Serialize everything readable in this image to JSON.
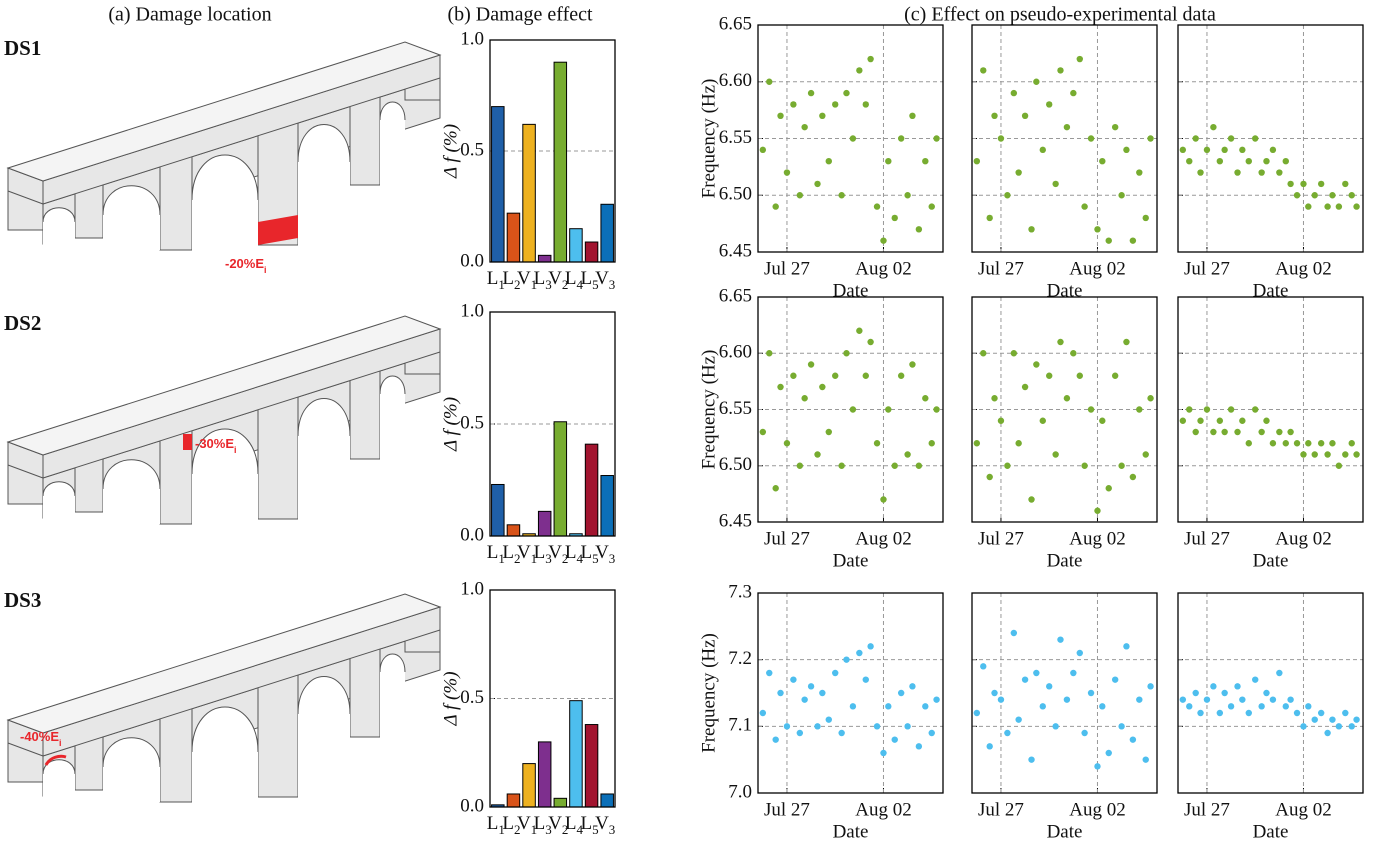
{
  "headers": [
    "(a) Damage location",
    "(b) Damage effect",
    "(c) Effect on pseudo-experimental data"
  ],
  "rows": [
    {
      "label": "DS1",
      "annotation": "-20%Ei"
    },
    {
      "label": "DS2",
      "annotation": "-30%Ei"
    },
    {
      "label": "DS3",
      "annotation": "-40%Ei"
    }
  ],
  "chart_data": [
    {
      "type": "bar",
      "ylabel": "Δ f (%)",
      "categories": [
        "L1",
        "L2",
        "V1",
        "L3",
        "V2",
        "L4",
        "L5",
        "V3"
      ],
      "colors": [
        "#1f5fa8",
        "#d95319",
        "#edb120",
        "#7e2f8e",
        "#77ac30",
        "#4dbeee",
        "#a2142f",
        "#0b6fb8"
      ],
      "values": [
        0.7,
        0.22,
        0.62,
        0.03,
        0.9,
        0.15,
        0.09,
        0.26
      ],
      "ylim": [
        0,
        1
      ],
      "yticks": [
        {
          "value": 0,
          "label": "0.0"
        },
        0.5,
        {
          "value": 1,
          "label": "1.0"
        }
      ],
      "grid": true
    },
    {
      "type": "scatter",
      "ylabel": "Frequency (Hz)",
      "xlabel": "Date",
      "color": "#77ac30",
      "xlim": [
        206.2,
        217.7
      ],
      "xticks": [
        {
          "value": 208,
          "label": "Jul 27"
        },
        {
          "value": 214,
          "label": "Aug 02"
        }
      ],
      "ylim": [
        6.45,
        6.65
      ],
      "yticks": [
        6.45,
        {
          "value": 6.5,
          "label": "6.50"
        },
        6.55,
        {
          "value": 6.6,
          "label": "6.60"
        },
        6.65
      ],
      "grid": true,
      "x": [
        206.5,
        206.9,
        207.3,
        207.6,
        208.0,
        208.4,
        208.8,
        209.1,
        209.5,
        209.9,
        210.2,
        210.6,
        211.0,
        211.4,
        211.7,
        212.1,
        212.5,
        212.9,
        213.2,
        213.6,
        214.0,
        214.3,
        214.7,
        215.1,
        215.5,
        215.8,
        216.2,
        216.6,
        217.0,
        217.3
      ],
      "values": [
        6.54,
        6.6,
        6.49,
        6.57,
        6.52,
        6.58,
        6.5,
        6.56,
        6.59,
        6.51,
        6.57,
        6.53,
        6.58,
        6.5,
        6.59,
        6.55,
        6.61,
        6.58,
        6.62,
        6.49,
        6.46,
        6.53,
        6.48,
        6.55,
        6.5,
        6.57,
        6.47,
        6.53,
        6.49,
        6.55
      ]
    },
    {
      "type": "scatter",
      "xlabel": "Date",
      "color": "#77ac30",
      "xlim": [
        206.2,
        217.7
      ],
      "xticks": [
        {
          "value": 208,
          "label": "Jul 27"
        },
        {
          "value": 214,
          "label": "Aug 02"
        }
      ],
      "ylim": [
        6.45,
        6.65
      ],
      "yticks": [
        6.45,
        6.5,
        6.55,
        6.6,
        6.65
      ],
      "ytick_labels": false,
      "grid": true,
      "x": [
        206.5,
        206.9,
        207.3,
        207.6,
        208.0,
        208.4,
        208.8,
        209.1,
        209.5,
        209.9,
        210.2,
        210.6,
        211.0,
        211.4,
        211.7,
        212.1,
        212.5,
        212.9,
        213.2,
        213.6,
        214.0,
        214.3,
        214.7,
        215.1,
        215.5,
        215.8,
        216.2,
        216.6,
        217.0,
        217.3
      ],
      "values": [
        6.53,
        6.61,
        6.48,
        6.57,
        6.55,
        6.5,
        6.59,
        6.52,
        6.57,
        6.47,
        6.6,
        6.54,
        6.58,
        6.51,
        6.61,
        6.56,
        6.59,
        6.62,
        6.49,
        6.55,
        6.47,
        6.53,
        6.46,
        6.56,
        6.5,
        6.54,
        6.46,
        6.52,
        6.48,
        6.55
      ]
    },
    {
      "type": "scatter",
      "xlabel": "Date",
      "color": "#77ac30",
      "xlim": [
        206.2,
        217.7
      ],
      "xticks": [
        {
          "value": 208,
          "label": "Jul 27"
        },
        {
          "value": 214,
          "label": "Aug 02"
        }
      ],
      "ylim": [
        6.45,
        6.65
      ],
      "yticks": [
        6.45,
        6.5,
        6.55,
        6.6,
        6.65
      ],
      "ytick_labels": false,
      "grid": true,
      "x": [
        206.5,
        206.9,
        207.3,
        207.6,
        208.0,
        208.4,
        208.8,
        209.1,
        209.5,
        209.9,
        210.2,
        210.6,
        211.0,
        211.4,
        211.7,
        212.1,
        212.5,
        212.9,
        213.2,
        213.6,
        214.0,
        214.3,
        214.7,
        215.1,
        215.5,
        215.8,
        216.2,
        216.6,
        217.0,
        217.3
      ],
      "values": [
        6.54,
        6.53,
        6.55,
        6.52,
        6.54,
        6.56,
        6.53,
        6.54,
        6.55,
        6.52,
        6.54,
        6.53,
        6.55,
        6.52,
        6.53,
        6.54,
        6.52,
        6.53,
        6.51,
        6.5,
        6.51,
        6.49,
        6.5,
        6.51,
        6.49,
        6.5,
        6.49,
        6.51,
        6.5,
        6.49
      ]
    },
    {
      "type": "bar",
      "ylabel": "Δ f (%)",
      "categories": [
        "L1",
        "L2",
        "V1",
        "L3",
        "V2",
        "L4",
        "L5",
        "V3"
      ],
      "colors": [
        "#1f5fa8",
        "#d95319",
        "#edb120",
        "#7e2f8e",
        "#77ac30",
        "#4dbeee",
        "#a2142f",
        "#0b6fb8"
      ],
      "values": [
        0.23,
        0.05,
        0.01,
        0.11,
        0.51,
        0.01,
        0.41,
        0.27
      ],
      "ylim": [
        0,
        1
      ],
      "yticks": [
        {
          "value": 0,
          "label": "0.0"
        },
        0.5,
        {
          "value": 1,
          "label": "1.0"
        }
      ],
      "grid": true
    },
    {
      "type": "scatter",
      "ylabel": "Frequency (Hz)",
      "xlabel": "Date",
      "color": "#77ac30",
      "xlim": [
        206.2,
        217.7
      ],
      "xticks": [
        {
          "value": 208,
          "label": "Jul 27"
        },
        {
          "value": 214,
          "label": "Aug 02"
        }
      ],
      "ylim": [
        6.45,
        6.65
      ],
      "yticks": [
        6.45,
        {
          "value": 6.5,
          "label": "6.50"
        },
        6.55,
        {
          "value": 6.6,
          "label": "6.60"
        },
        6.65
      ],
      "grid": true,
      "x": [
        206.5,
        206.9,
        207.3,
        207.6,
        208.0,
        208.4,
        208.8,
        209.1,
        209.5,
        209.9,
        210.2,
        210.6,
        211.0,
        211.4,
        211.7,
        212.1,
        212.5,
        212.9,
        213.2,
        213.6,
        214.0,
        214.3,
        214.7,
        215.1,
        215.5,
        215.8,
        216.2,
        216.6,
        217.0,
        217.3
      ],
      "values": [
        6.53,
        6.6,
        6.48,
        6.57,
        6.52,
        6.58,
        6.5,
        6.56,
        6.59,
        6.51,
        6.57,
        6.53,
        6.58,
        6.5,
        6.6,
        6.55,
        6.62,
        6.58,
        6.61,
        6.52,
        6.47,
        6.55,
        6.5,
        6.58,
        6.51,
        6.59,
        6.5,
        6.56,
        6.52,
        6.55
      ]
    },
    {
      "type": "scatter",
      "xlabel": "Date",
      "color": "#77ac30",
      "xlim": [
        206.2,
        217.7
      ],
      "xticks": [
        {
          "value": 208,
          "label": "Jul 27"
        },
        {
          "value": 214,
          "label": "Aug 02"
        }
      ],
      "ylim": [
        6.45,
        6.65
      ],
      "yticks": [
        6.45,
        6.5,
        6.55,
        6.6,
        6.65
      ],
      "ytick_labels": false,
      "grid": true,
      "x": [
        206.5,
        206.9,
        207.3,
        207.6,
        208.0,
        208.4,
        208.8,
        209.1,
        209.5,
        209.9,
        210.2,
        210.6,
        211.0,
        211.4,
        211.7,
        212.1,
        212.5,
        212.9,
        213.2,
        213.6,
        214.0,
        214.3,
        214.7,
        215.1,
        215.5,
        215.8,
        216.2,
        216.6,
        217.0,
        217.3
      ],
      "values": [
        6.52,
        6.6,
        6.49,
        6.56,
        6.54,
        6.5,
        6.6,
        6.52,
        6.57,
        6.47,
        6.59,
        6.54,
        6.58,
        6.51,
        6.61,
        6.56,
        6.6,
        6.58,
        6.5,
        6.55,
        6.46,
        6.54,
        6.48,
        6.58,
        6.5,
        6.61,
        6.49,
        6.55,
        6.51,
        6.56
      ]
    },
    {
      "type": "scatter",
      "xlabel": "Date",
      "color": "#77ac30",
      "xlim": [
        206.2,
        217.7
      ],
      "xticks": [
        {
          "value": 208,
          "label": "Jul 27"
        },
        {
          "value": 214,
          "label": "Aug 02"
        }
      ],
      "ylim": [
        6.45,
        6.65
      ],
      "yticks": [
        6.45,
        6.5,
        6.55,
        6.6,
        6.65
      ],
      "ytick_labels": false,
      "grid": true,
      "x": [
        206.5,
        206.9,
        207.3,
        207.6,
        208.0,
        208.4,
        208.8,
        209.1,
        209.5,
        209.9,
        210.2,
        210.6,
        211.0,
        211.4,
        211.7,
        212.1,
        212.5,
        212.9,
        213.2,
        213.6,
        214.0,
        214.3,
        214.7,
        215.1,
        215.5,
        215.8,
        216.2,
        216.6,
        217.0,
        217.3
      ],
      "values": [
        6.54,
        6.55,
        6.53,
        6.54,
        6.55,
        6.53,
        6.54,
        6.53,
        6.55,
        6.53,
        6.54,
        6.52,
        6.55,
        6.53,
        6.54,
        6.52,
        6.53,
        6.52,
        6.53,
        6.52,
        6.51,
        6.52,
        6.51,
        6.52,
        6.51,
        6.52,
        6.5,
        6.51,
        6.52,
        6.51
      ]
    },
    {
      "type": "bar",
      "ylabel": "Δ f (%)",
      "categories": [
        "L1",
        "L2",
        "V1",
        "L3",
        "V2",
        "L4",
        "L5",
        "V3"
      ],
      "colors": [
        "#1f5fa8",
        "#d95319",
        "#edb120",
        "#7e2f8e",
        "#77ac30",
        "#4dbeee",
        "#a2142f",
        "#0b6fb8"
      ],
      "values": [
        0.01,
        0.06,
        0.2,
        0.3,
        0.04,
        0.49,
        0.38,
        0.06
      ],
      "ylim": [
        0,
        1
      ],
      "yticks": [
        {
          "value": 0,
          "label": "0.0"
        },
        0.5,
        {
          "value": 1,
          "label": "1.0"
        }
      ],
      "grid": true
    },
    {
      "type": "scatter",
      "ylabel": "Frequency (Hz)",
      "xlabel": "Date",
      "color": "#4dbeee",
      "xlim": [
        206.2,
        217.7
      ],
      "xticks": [
        {
          "value": 208,
          "label": "Jul 27"
        },
        {
          "value": 214,
          "label": "Aug 02"
        }
      ],
      "ylim": [
        7.0,
        7.3
      ],
      "yticks": [
        {
          "value": 7,
          "label": "7.0"
        },
        7.1,
        7.2,
        7.3
      ],
      "grid": true,
      "x": [
        206.5,
        206.9,
        207.3,
        207.6,
        208.0,
        208.4,
        208.8,
        209.1,
        209.5,
        209.9,
        210.2,
        210.6,
        211.0,
        211.4,
        211.7,
        212.1,
        212.5,
        212.9,
        213.2,
        213.6,
        214.0,
        214.3,
        214.7,
        215.1,
        215.5,
        215.8,
        216.2,
        216.6,
        217.0,
        217.3
      ],
      "values": [
        7.12,
        7.18,
        7.08,
        7.15,
        7.1,
        7.17,
        7.09,
        7.14,
        7.16,
        7.1,
        7.15,
        7.11,
        7.18,
        7.09,
        7.2,
        7.13,
        7.21,
        7.17,
        7.22,
        7.1,
        7.06,
        7.13,
        7.08,
        7.15,
        7.1,
        7.16,
        7.07,
        7.13,
        7.09,
        7.14
      ]
    },
    {
      "type": "scatter",
      "xlabel": "Date",
      "color": "#4dbeee",
      "xlim": [
        206.2,
        217.7
      ],
      "xticks": [
        {
          "value": 208,
          "label": "Jul 27"
        },
        {
          "value": 214,
          "label": "Aug 02"
        }
      ],
      "ylim": [
        7.0,
        7.3
      ],
      "yticks": [
        7,
        7.1,
        7.2,
        7.3
      ],
      "ytick_labels": false,
      "grid": true,
      "x": [
        206.5,
        206.9,
        207.3,
        207.6,
        208.0,
        208.4,
        208.8,
        209.1,
        209.5,
        209.9,
        210.2,
        210.6,
        211.0,
        211.4,
        211.7,
        212.1,
        212.5,
        212.9,
        213.2,
        213.6,
        214.0,
        214.3,
        214.7,
        215.1,
        215.5,
        215.8,
        216.2,
        216.6,
        217.0,
        217.3
      ],
      "values": [
        7.12,
        7.19,
        7.07,
        7.15,
        7.14,
        7.09,
        7.24,
        7.11,
        7.17,
        7.05,
        7.18,
        7.13,
        7.16,
        7.1,
        7.23,
        7.14,
        7.18,
        7.21,
        7.09,
        7.15,
        7.04,
        7.13,
        7.06,
        7.17,
        7.1,
        7.22,
        7.08,
        7.14,
        7.05,
        7.16
      ]
    },
    {
      "type": "scatter",
      "xlabel": "Date",
      "color": "#4dbeee",
      "xlim": [
        206.2,
        217.7
      ],
      "xticks": [
        {
          "value": 208,
          "label": "Jul 27"
        },
        {
          "value": 214,
          "label": "Aug 02"
        }
      ],
      "ylim": [
        7.0,
        7.3
      ],
      "yticks": [
        7,
        7.1,
        7.2,
        7.3
      ],
      "ytick_labels": false,
      "grid": true,
      "x": [
        206.5,
        206.9,
        207.3,
        207.6,
        208.0,
        208.4,
        208.8,
        209.1,
        209.5,
        209.9,
        210.2,
        210.6,
        211.0,
        211.4,
        211.7,
        212.1,
        212.5,
        212.9,
        213.2,
        213.6,
        214.0,
        214.3,
        214.7,
        215.1,
        215.5,
        215.8,
        216.2,
        216.6,
        217.0,
        217.3
      ],
      "values": [
        7.14,
        7.13,
        7.15,
        7.12,
        7.14,
        7.16,
        7.12,
        7.15,
        7.13,
        7.16,
        7.14,
        7.12,
        7.17,
        7.13,
        7.15,
        7.14,
        7.18,
        7.13,
        7.14,
        7.12,
        7.1,
        7.13,
        7.11,
        7.12,
        7.09,
        7.11,
        7.1,
        7.12,
        7.1,
        7.11
      ]
    }
  ]
}
